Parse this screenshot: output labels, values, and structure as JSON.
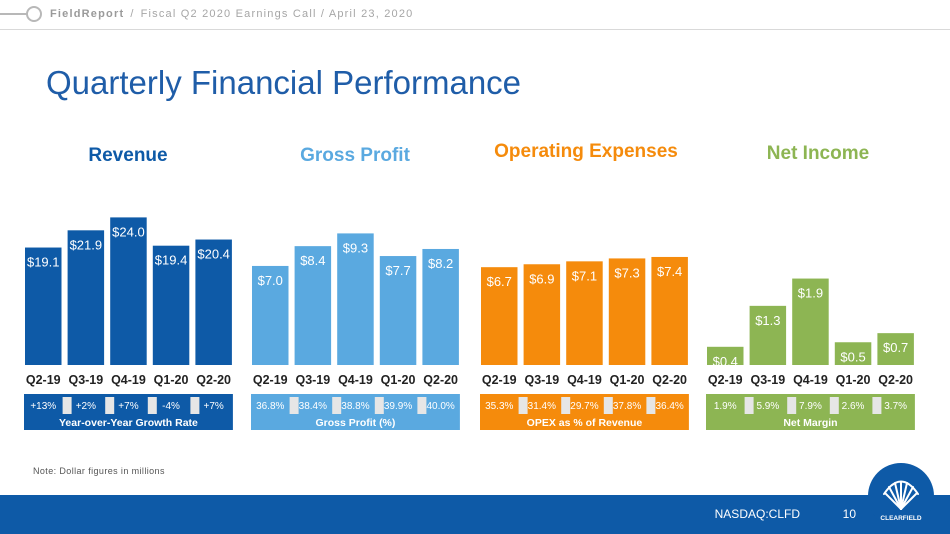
{
  "header": {
    "brand": "FieldReport",
    "crumb1": "Fiscal Q2 2020 Earnings Call /",
    "crumb2": "April 23, 2020",
    "separator": "/"
  },
  "page_title": "Quarterly Financial Performance",
  "note": "Note: Dollar figures in millions",
  "footer": {
    "ticker": "NASDAQ:CLFD",
    "page_number": "10",
    "logo_text": "CLEARFIELD"
  },
  "colors": {
    "revenue": "#0e5aa7",
    "gross_profit": "#5aa9e0",
    "opex": "#f58b0c",
    "net_income": "#8db553",
    "title_blue": "#1f5da8"
  },
  "chart_data": [
    {
      "type": "bar",
      "title": "Revenue",
      "categories": [
        "Q2-19",
        "Q3-19",
        "Q4-19",
        "Q1-20",
        "Q2-20"
      ],
      "values": [
        19.1,
        21.9,
        24.0,
        19.4,
        20.4
      ],
      "labels": [
        "$19.1",
        "$21.9",
        "$24.0",
        "$19.4",
        "$20.4"
      ],
      "metric_values": [
        "+13%",
        "+2%",
        "+7%",
        "-4%",
        "+7%"
      ],
      "metric_label": "Year-over-Year Growth Rate",
      "color": "#0e5aa7"
    },
    {
      "type": "bar",
      "title": "Gross Profit",
      "categories": [
        "Q2-19",
        "Q3-19",
        "Q4-19",
        "Q1-20",
        "Q2-20"
      ],
      "values": [
        7.0,
        8.4,
        9.3,
        7.7,
        8.2
      ],
      "labels": [
        "$7.0",
        "$8.4",
        "$9.3",
        "$7.7",
        "$8.2"
      ],
      "metric_values": [
        "36.8%",
        "38.4%",
        "38.8%",
        "39.9%",
        "40.0%"
      ],
      "metric_label": "Gross Profit (%)",
      "color": "#5aa9e0"
    },
    {
      "type": "bar",
      "title": "Operating Expenses",
      "categories": [
        "Q2-19",
        "Q3-19",
        "Q4-19",
        "Q1-20",
        "Q2-20"
      ],
      "values": [
        6.7,
        6.9,
        7.1,
        7.3,
        7.4
      ],
      "labels": [
        "$6.7",
        "$6.9",
        "$7.1",
        "$7.3",
        "$7.4"
      ],
      "metric_values": [
        "35.3%",
        "31.4%",
        "29.7%",
        "37.8%",
        "36.4%"
      ],
      "metric_label": "OPEX as % of Revenue",
      "color": "#f58b0c"
    },
    {
      "type": "bar",
      "title": "Net Income",
      "categories": [
        "Q2-19",
        "Q3-19",
        "Q4-19",
        "Q1-20",
        "Q2-20"
      ],
      "values": [
        0.4,
        1.3,
        1.9,
        0.5,
        0.7
      ],
      "labels": [
        "$0.4",
        "$1.3",
        "$1.9",
        "$0.5",
        "$0.7"
      ],
      "metric_values": [
        "1.9%",
        "5.9%",
        "7.9%",
        "2.6%",
        "3.7%"
      ],
      "metric_label": "Net Margin",
      "color": "#8db553"
    }
  ]
}
